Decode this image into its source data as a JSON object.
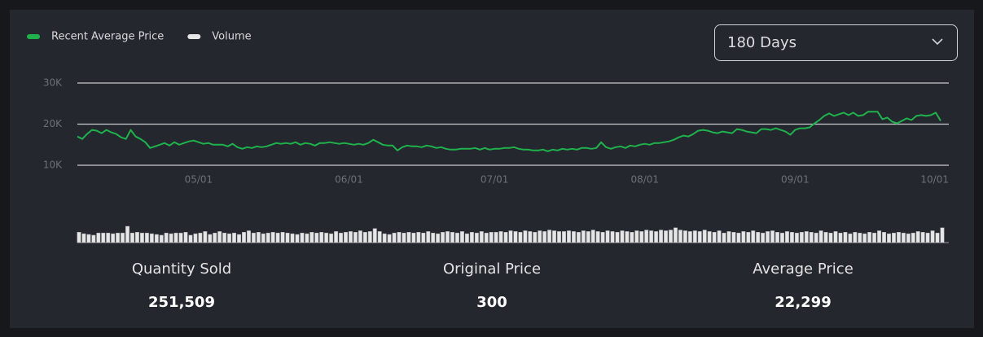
{
  "chart_data": {
    "type": "line",
    "categories": [
      null,
      null,
      null,
      null,
      null,
      null,
      null,
      null,
      null,
      null,
      null,
      null,
      null,
      null,
      null,
      null,
      null,
      null,
      null,
      null,
      null,
      null,
      null,
      null,
      null,
      "05/01",
      null,
      null,
      null,
      null,
      null,
      null,
      null,
      null,
      null,
      null,
      null,
      null,
      null,
      null,
      null,
      null,
      null,
      null,
      null,
      null,
      null,
      null,
      null,
      null,
      null,
      null,
      null,
      null,
      null,
      null,
      "06/01",
      null,
      null,
      null,
      null,
      null,
      null,
      null,
      null,
      null,
      null,
      null,
      null,
      null,
      null,
      null,
      null,
      null,
      null,
      null,
      null,
      null,
      null,
      null,
      null,
      null,
      null,
      null,
      null,
      null,
      "07/01",
      null,
      null,
      null,
      null,
      null,
      null,
      null,
      null,
      null,
      null,
      null,
      null,
      null,
      null,
      null,
      null,
      null,
      null,
      null,
      null,
      null,
      null,
      null,
      null,
      null,
      null,
      null,
      null,
      null,
      null,
      "08/01",
      null,
      null,
      null,
      null,
      null,
      null,
      null,
      null,
      null,
      null,
      null,
      null,
      null,
      null,
      null,
      null,
      null,
      null,
      null,
      null,
      null,
      null,
      null,
      null,
      null,
      null,
      null,
      null,
      null,
      null,
      "09/01",
      null,
      null,
      null,
      null,
      null,
      null,
      null,
      null,
      null,
      null,
      null,
      null,
      null,
      null,
      null,
      null,
      null,
      null,
      null,
      null,
      null,
      null,
      null,
      null,
      null,
      null,
      null,
      null,
      null,
      "10/01"
    ],
    "series": [
      {
        "name": "Recent Average Price",
        "type": "line",
        "color": "#1fb24c",
        "values": [
          17000,
          16400,
          17600,
          18600,
          18400,
          17800,
          18600,
          18000,
          17600,
          16800,
          16400,
          18600,
          17000,
          16400,
          15600,
          14200,
          14600,
          15000,
          15400,
          14800,
          15600,
          15000,
          15400,
          15800,
          16000,
          15600,
          15200,
          15400,
          15000,
          15000,
          15000,
          14600,
          15200,
          14400,
          14000,
          14400,
          14200,
          14600,
          14400,
          14600,
          15000,
          15400,
          15200,
          15400,
          15200,
          15600,
          15000,
          15400,
          15200,
          14800,
          15400,
          15400,
          15600,
          15400,
          15200,
          15400,
          15200,
          15000,
          15200,
          15000,
          15400,
          16200,
          15600,
          15000,
          14800,
          14800,
          13600,
          14400,
          14800,
          14600,
          14600,
          14400,
          14800,
          14600,
          14200,
          14400,
          14000,
          13800,
          13800,
          14000,
          14000,
          14000,
          14200,
          13800,
          14200,
          13800,
          14000,
          14000,
          14200,
          14200,
          14400,
          14000,
          13800,
          13800,
          13600,
          13600,
          13800,
          13400,
          13800,
          13600,
          14000,
          13800,
          14000,
          13800,
          14200,
          14200,
          14000,
          14200,
          15600,
          14400,
          14000,
          14400,
          14600,
          14200,
          14800,
          14600,
          15000,
          15200,
          15000,
          15400,
          15400,
          15600,
          15800,
          16200,
          16800,
          17200,
          17000,
          17600,
          18400,
          18600,
          18400,
          18000,
          17800,
          18200,
          18000,
          17800,
          18800,
          18600,
          18200,
          18000,
          17800,
          18800,
          18800,
          18600,
          19000,
          18600,
          18200,
          17400,
          18600,
          19000,
          19000,
          19200,
          20200,
          21000,
          22000,
          22600,
          22000,
          22400,
          22800,
          22200,
          22800,
          22000,
          22200,
          23000,
          23000,
          23000,
          21200,
          21600,
          20600,
          20200,
          20800,
          21400,
          21000,
          22000,
          22200,
          22000,
          22200,
          22800,
          20800
        ]
      },
      {
        "name": "Volume",
        "type": "bar",
        "color": "#e6e6e6",
        "values": [
          1400,
          1200,
          1100,
          1000,
          1300,
          1300,
          1300,
          1200,
          1300,
          1300,
          2200,
          1300,
          1400,
          1300,
          1300,
          1200,
          1100,
          1000,
          1300,
          1200,
          1300,
          1300,
          1400,
          1000,
          1200,
          1300,
          1500,
          1100,
          1300,
          1500,
          1300,
          1200,
          1300,
          1100,
          1400,
          1600,
          1300,
          1400,
          1200,
          1300,
          1400,
          1300,
          1400,
          1300,
          1200,
          1100,
          1300,
          1200,
          1400,
          1300,
          1400,
          1300,
          1200,
          1500,
          1300,
          1400,
          1500,
          1400,
          1600,
          1400,
          1500,
          1900,
          1500,
          1200,
          1100,
          1300,
          1400,
          1300,
          1400,
          1300,
          1400,
          1300,
          1500,
          1300,
          1200,
          1400,
          1500,
          1400,
          1300,
          1500,
          1200,
          1400,
          1300,
          1500,
          1300,
          1400,
          1400,
          1500,
          1400,
          1600,
          1500,
          1400,
          1600,
          1500,
          1400,
          1600,
          1500,
          1700,
          1600,
          1500,
          1500,
          1600,
          1500,
          1400,
          1600,
          1500,
          1700,
          1500,
          1400,
          1600,
          1500,
          1400,
          1600,
          1500,
          1400,
          1600,
          1500,
          1700,
          1600,
          1500,
          1700,
          1600,
          1700,
          2000,
          1700,
          1600,
          1500,
          1600,
          1500,
          1700,
          1500,
          1400,
          1600,
          1300,
          1500,
          1400,
          1300,
          1500,
          1400,
          1600,
          1400,
          1300,
          1500,
          1600,
          1400,
          1300,
          1500,
          1400,
          1300,
          1400,
          1500,
          1400,
          1300,
          1600,
          1400,
          1300,
          1500,
          1300,
          1400,
          1200,
          1400,
          1300,
          1200,
          1400,
          1300,
          1600,
          1400,
          1200,
          1300,
          1400,
          1300,
          1200,
          1300,
          1500,
          1400,
          1300,
          1600,
          1300,
          2000
        ]
      }
    ],
    "ylim": [
      10000,
      30000
    ],
    "yticks": [
      {
        "value": 10000,
        "label": "10K"
      },
      {
        "value": 20000,
        "label": "20K"
      },
      {
        "value": 30000,
        "label": "30K"
      }
    ],
    "grid": true
  },
  "dropdown": {
    "selected": "180 Days"
  },
  "stats": [
    {
      "label": "Quantity Sold",
      "value": "251,509"
    },
    {
      "label": "Original Price",
      "value": "300"
    },
    {
      "label": "Average Price",
      "value": "22,299"
    }
  ]
}
